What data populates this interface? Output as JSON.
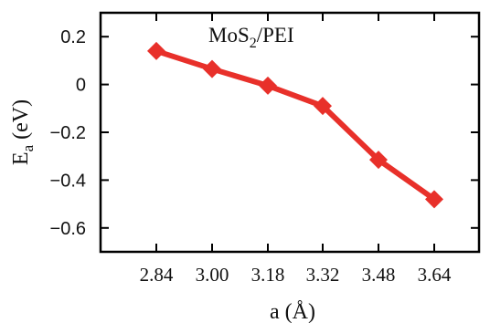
{
  "chart_data": {
    "type": "line",
    "title": "",
    "annotation": {
      "main": "MoS",
      "sub": "2",
      "suffix": "/PEI"
    },
    "xlabel": "a (Å)",
    "ylabel": {
      "main": "E",
      "sub": "a",
      "suffix": " (eV)"
    },
    "x_tick_labels": [
      "2.84",
      "3.00",
      "3.18",
      "3.32",
      "3.48",
      "3.64"
    ],
    "y_ticks": [
      0.2,
      0,
      -0.2,
      -0.4,
      -0.6
    ],
    "y_tick_labels": [
      "0.2",
      "0",
      "−0.2",
      "−0.4",
      "−0.6"
    ],
    "ylim": [
      -0.7,
      0.3
    ],
    "grid": false,
    "series": [
      {
        "color": "#e8302a",
        "marker": "diamond",
        "values": [
          0.14,
          0.065,
          -0.005,
          -0.09,
          -0.315,
          -0.48
        ]
      }
    ]
  }
}
